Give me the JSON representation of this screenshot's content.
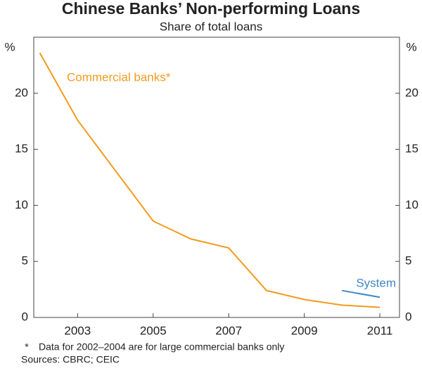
{
  "chart_data": {
    "type": "line",
    "title": "Chinese Banks’ Non-performing Loans",
    "subtitle": "Share of total loans",
    "y_unit": "%",
    "x": [
      2002,
      2003,
      2005,
      2006,
      2007,
      2008,
      2009,
      2010,
      2011
    ],
    "series": [
      {
        "name": "Commercial banks*",
        "color": "#f39a1e",
        "values": [
          23.6,
          17.6,
          8.6,
          7.0,
          6.2,
          2.4,
          1.6,
          1.1,
          0.9
        ]
      },
      {
        "name": "System",
        "color": "#3d87c6",
        "values": [
          null,
          null,
          null,
          null,
          null,
          null,
          null,
          2.4,
          1.8
        ]
      }
    ],
    "xlim": [
      2001.84,
      2011.52
    ],
    "xticks": [
      2003,
      2005,
      2007,
      2009,
      2011
    ],
    "ylim": [
      0,
      25
    ],
    "yticks": [
      0,
      5,
      10,
      15,
      20
    ],
    "grid": false,
    "footnote": {
      "marker": "*",
      "text": "Data for 2002–2004 are for large commercial banks only"
    },
    "sources": "Sources: CBRC; CEIC"
  }
}
